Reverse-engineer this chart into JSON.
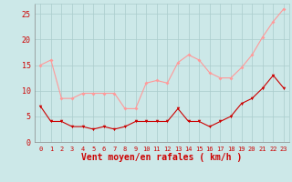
{
  "hours": [
    0,
    1,
    2,
    3,
    4,
    5,
    6,
    7,
    8,
    9,
    10,
    11,
    12,
    13,
    14,
    15,
    16,
    17,
    18,
    19,
    20,
    21,
    22,
    23
  ],
  "mean_wind": [
    7.0,
    4.0,
    4.0,
    3.0,
    3.0,
    2.5,
    3.0,
    2.5,
    3.0,
    4.0,
    4.0,
    4.0,
    4.0,
    6.5,
    4.0,
    4.0,
    3.0,
    4.0,
    5.0,
    7.5,
    8.5,
    10.5,
    13.0,
    10.5
  ],
  "gust_wind": [
    15.0,
    16.0,
    8.5,
    8.5,
    9.5,
    9.5,
    9.5,
    9.5,
    6.5,
    6.5,
    11.5,
    12.0,
    11.5,
    15.5,
    17.0,
    16.0,
    13.5,
    12.5,
    12.5,
    14.5,
    17.0,
    20.5,
    23.5,
    26.0
  ],
  "mean_color": "#cc0000",
  "gust_color": "#ff9999",
  "bg_color": "#cce8e8",
  "grid_color": "#aacccc",
  "axis_color": "#cc0000",
  "xlabel": "Vent moyen/en rafales ( km/h )",
  "ylim": [
    0,
    27
  ],
  "yticks": [
    0,
    5,
    10,
    15,
    20,
    25
  ],
  "xtick_fontsize": 5,
  "ytick_fontsize": 6,
  "label_fontsize": 7
}
